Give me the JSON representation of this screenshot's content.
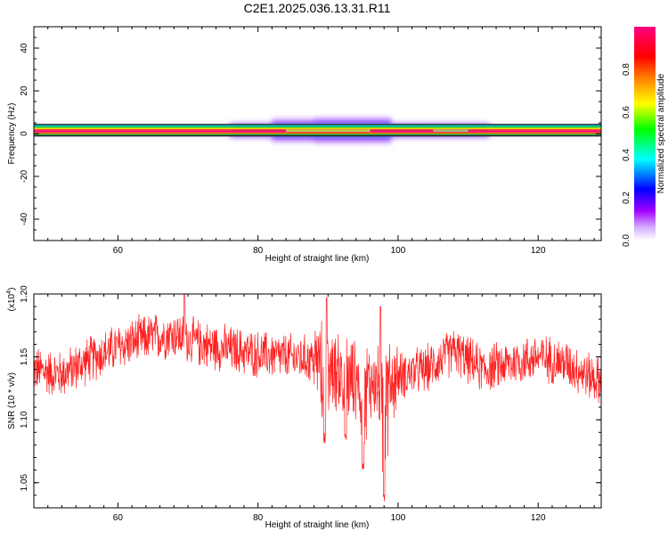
{
  "title": "C2E1.2025.036.13.31.R11",
  "chart_data": [
    {
      "type": "heatmap",
      "xlabel": "Height of straight line (km)",
      "ylabel": "Frequency (Hz)",
      "xlim": [
        48,
        129
      ],
      "ylim": [
        -50,
        50
      ],
      "xticks": [
        60,
        80,
        100,
        120
      ],
      "yticks": [
        -40,
        -20,
        0,
        20,
        40
      ],
      "grid": false,
      "colorbar": {
        "label": "Normalized spectral amplitude",
        "range": [
          0.0,
          1.0
        ],
        "ticks": [
          "0.0",
          "0.2",
          "0.4",
          "0.6",
          "0.8"
        ],
        "colors": [
          "#ffffff",
          "#a000ff",
          "#0000ff",
          "#00ffff",
          "#00ff00",
          "#ffff00",
          "#ff8000",
          "#ff0000",
          "#ff0080"
        ]
      },
      "band": {
        "center_hz": 1.5,
        "base_halfwidth_hz": 2,
        "spread": [
          {
            "x": 48,
            "halfwidth_hz": 2
          },
          {
            "x": 76,
            "halfwidth_hz": 2
          },
          {
            "x": 82,
            "halfwidth_hz": 3
          },
          {
            "x": 88,
            "halfwidth_hz": 4.5
          },
          {
            "x": 95,
            "halfwidth_hz": 5
          },
          {
            "x": 99,
            "halfwidth_hz": 3
          },
          {
            "x": 101,
            "halfwidth_hz": 2
          },
          {
            "x": 105,
            "halfwidth_hz": 3
          },
          {
            "x": 109,
            "halfwidth_hz": 3
          },
          {
            "x": 113,
            "halfwidth_hz": 2
          },
          {
            "x": 129,
            "halfwidth_hz": 2
          }
        ]
      }
    },
    {
      "type": "line",
      "xlabel": "Height of straight line (km)",
      "ylabel": "SNR (10 * v/v)",
      "scale_label": "(x10^4)",
      "xlim": [
        48,
        129
      ],
      "ylim": [
        1.03,
        1.2
      ],
      "xticks": [
        60,
        80,
        100,
        120
      ],
      "yticks": [
        "1.05",
        "1.10",
        "1.15",
        "1.20"
      ],
      "grid": false,
      "color": "#ff2020",
      "trend": [
        {
          "x": 48,
          "y": 1.14
        },
        {
          "x": 52,
          "y": 1.136
        },
        {
          "x": 56,
          "y": 1.148
        },
        {
          "x": 60,
          "y": 1.158
        },
        {
          "x": 64,
          "y": 1.165
        },
        {
          "x": 68,
          "y": 1.168
        },
        {
          "x": 72,
          "y": 1.16
        },
        {
          "x": 76,
          "y": 1.156
        },
        {
          "x": 80,
          "y": 1.152
        },
        {
          "x": 84,
          "y": 1.15
        },
        {
          "x": 88,
          "y": 1.148
        },
        {
          "x": 90,
          "y": 1.145
        },
        {
          "x": 92,
          "y": 1.135
        },
        {
          "x": 96,
          "y": 1.13
        },
        {
          "x": 98,
          "y": 1.125
        },
        {
          "x": 100,
          "y": 1.135
        },
        {
          "x": 104,
          "y": 1.14
        },
        {
          "x": 108,
          "y": 1.155
        },
        {
          "x": 112,
          "y": 1.14
        },
        {
          "x": 116,
          "y": 1.145
        },
        {
          "x": 120,
          "y": 1.15
        },
        {
          "x": 124,
          "y": 1.145
        },
        {
          "x": 129,
          "y": 1.13
        }
      ],
      "dips": [
        {
          "x": 89.5,
          "y": 1.08
        },
        {
          "x": 92.5,
          "y": 1.08
        },
        {
          "x": 95.0,
          "y": 1.06
        },
        {
          "x": 98.0,
          "y": 1.035
        }
      ],
      "peaks": [
        {
          "x": 69.5,
          "y": 1.2
        },
        {
          "x": 89.8,
          "y": 1.197
        },
        {
          "x": 97.5,
          "y": 1.19
        }
      ]
    }
  ]
}
